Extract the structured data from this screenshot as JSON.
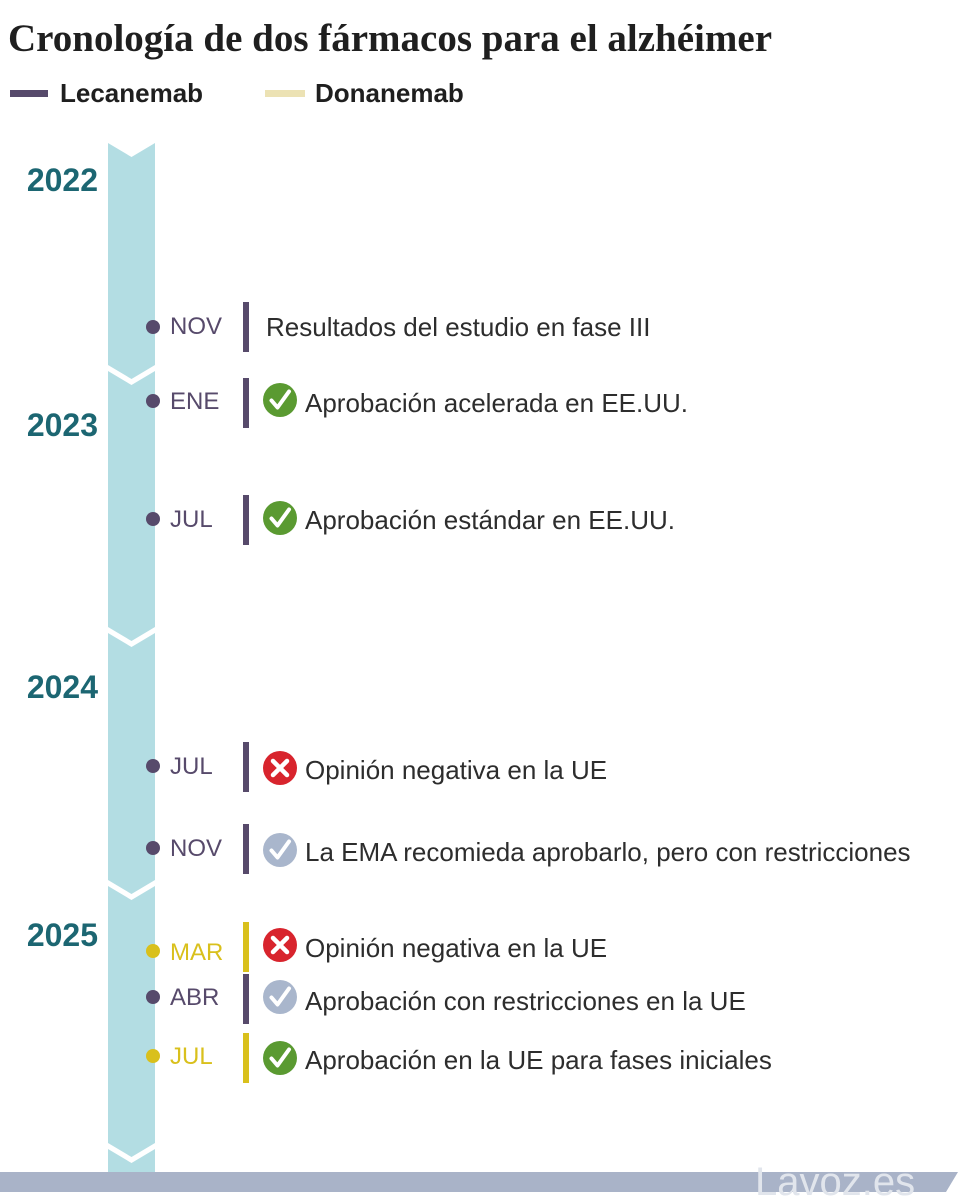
{
  "title": "Cronología de dos fármacos para el alzhéimer",
  "legend": [
    {
      "label": "Lecanemab",
      "color": "#574a6b"
    },
    {
      "label": "Donanemab",
      "color": "#ece2b4"
    }
  ],
  "colors": {
    "band": "#b3dde3",
    "year": "#1c6672",
    "footer_bar": "#a9b3c8",
    "brand_text": "#e1e5ec"
  },
  "status_icons": {
    "check-icon": {
      "color": "#5a9a31"
    },
    "cross-icon": {
      "color": "#d8242d"
    },
    "restricted-check-icon": {
      "color": "#a9b6cc"
    }
  },
  "years": [
    "2022",
    "2023",
    "2024",
    "2025"
  ],
  "events": [
    {
      "month": "NOV",
      "color": "#574a6b",
      "text": "Resultados del estudio en fase III"
    },
    {
      "month": "ENE",
      "color": "#574a6b",
      "icon": "check-icon",
      "text": "Aprobación acelerada en EE.UU."
    },
    {
      "month": "JUL",
      "color": "#574a6b",
      "icon": "check-icon",
      "text": "Aprobación estándar en EE.UU."
    },
    {
      "month": "JUL",
      "color": "#574a6b",
      "icon": "cross-icon",
      "text": "Opinión negativa en la UE"
    },
    {
      "month": "NOV",
      "color": "#574a6b",
      "icon": "restricted-check-icon",
      "text": "La EMA recomieda aprobarlo, pero con restricciones"
    },
    {
      "month": "MAR",
      "color": "#d9c01c",
      "icon": "cross-icon",
      "text": "Opinión negativa en la UE"
    },
    {
      "month": "ABR",
      "color": "#574a6b",
      "icon": "restricted-check-icon",
      "text": "Aprobación con restricciones en la UE"
    },
    {
      "month": "JUL",
      "color": "#d9c01c",
      "icon": "check-icon",
      "text": "Aprobación en la UE para fases iniciales"
    }
  ],
  "footer": {
    "brand": "Lavoz.es"
  }
}
